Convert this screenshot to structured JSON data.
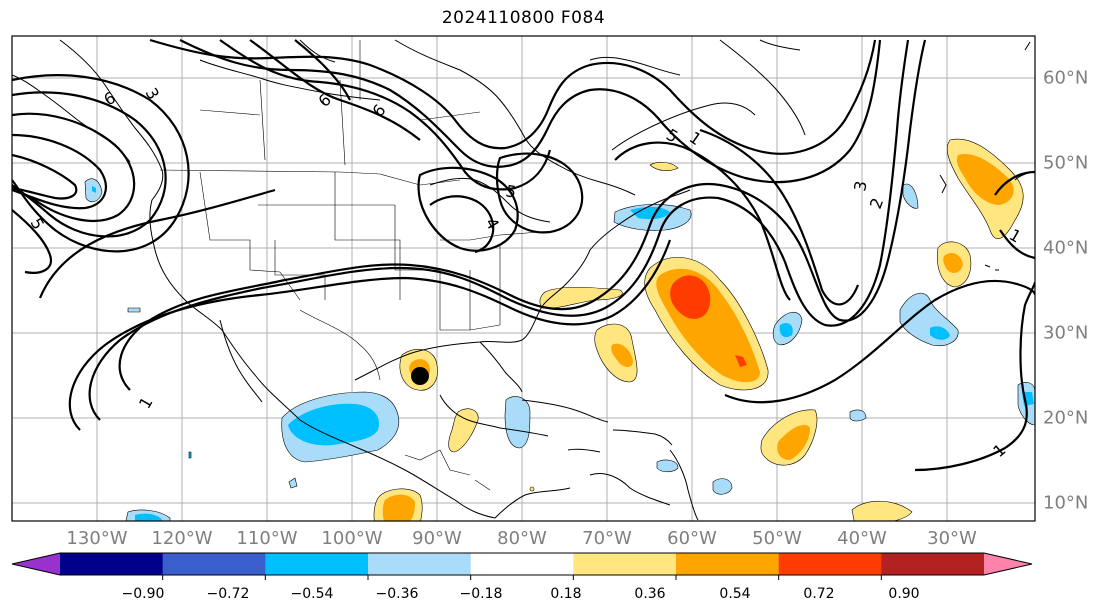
{
  "title": "2024110800 F084",
  "lon_labels": [
    "130°W",
    "120°W",
    "110°W",
    "100°W",
    "90°W",
    "80°W",
    "70°W",
    "60°W",
    "50°W",
    "40°W",
    "30°W"
  ],
  "lat_labels": [
    "60°N",
    "50°N",
    "40°N",
    "30°N",
    "20°N",
    "10°N"
  ],
  "contour_labels": [
    "3",
    "6",
    "6",
    "6",
    "5",
    "4",
    "5",
    "5",
    "1",
    "1",
    "2",
    "3",
    "1",
    "1"
  ],
  "colorbar": {
    "ticks": [
      "−0.90",
      "−0.72",
      "−0.54",
      "−0.36",
      "−0.18",
      "0.18",
      "0.36",
      "0.54",
      "0.72",
      "0.90"
    ],
    "colors": [
      "#9932cc",
      "#00008b",
      "#3a5fcd",
      "#00bfff",
      "#a8dcf9",
      "#ffffff",
      "#ffe680",
      "#ffa500",
      "#ff3c00",
      "#b22222",
      "#ff82ab"
    ]
  },
  "colors": {
    "shade_pos_1": "#ffe680",
    "shade_pos_2": "#ffa500",
    "shade_pos_3": "#ff3c00",
    "shade_neg_1": "#a8dcf9",
    "shade_neg_2": "#00bfff",
    "grid": "#b0b0b0",
    "marker": "#000000"
  }
}
